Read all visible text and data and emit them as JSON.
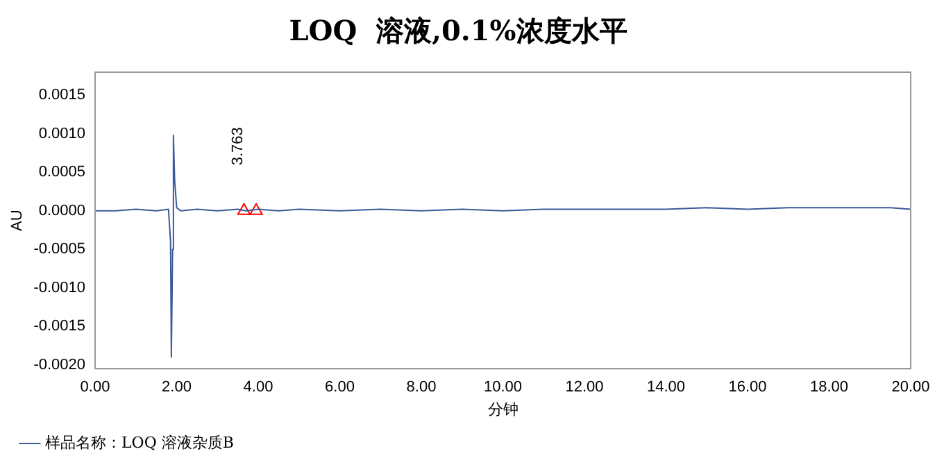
{
  "chart_data": {
    "type": "line",
    "title": "LOQ  溶液,0.1%浓度水平",
    "xlabel": "分钟",
    "ylabel": "AU",
    "xlim": [
      0,
      20
    ],
    "ylim": [
      -0.00205,
      0.0018
    ],
    "xticks": [
      {
        "value": 0,
        "label": "0.00"
      },
      {
        "value": 2,
        "label": "2.00"
      },
      {
        "value": 4,
        "label": "4.00"
      },
      {
        "value": 6,
        "label": "6.00"
      },
      {
        "value": 8,
        "label": "8.00"
      },
      {
        "value": 10,
        "label": "10.00"
      },
      {
        "value": 12,
        "label": "12.00"
      },
      {
        "value": 14,
        "label": "14.00"
      },
      {
        "value": 16,
        "label": "16.00"
      },
      {
        "value": 18,
        "label": "18.00"
      },
      {
        "value": 20,
        "label": "20.00"
      }
    ],
    "yticks": [
      {
        "value": -0.002,
        "label": "-0.0020"
      },
      {
        "value": -0.0015,
        "label": "-0.0015"
      },
      {
        "value": -0.001,
        "label": "-0.0010"
      },
      {
        "value": -0.0005,
        "label": "-0.0005"
      },
      {
        "value": 0,
        "label": "0.0000"
      },
      {
        "value": 0.0005,
        "label": "0.0005"
      },
      {
        "value": 0.001,
        "label": "0.0010"
      },
      {
        "value": 0.0015,
        "label": "0.0015"
      }
    ],
    "grid": false,
    "legend": "bottom left",
    "marker": "none",
    "line_style": "solid",
    "annotations": [
      "3.763"
    ],
    "series": [
      {
        "name": "样品名称：LOQ 溶液杂质B",
        "color": "#3b5a99",
        "x": [
          0,
          0.5,
          1,
          1.5,
          1.8,
          1.85,
          1.87,
          1.9,
          1.92,
          1.95,
          2,
          2.1,
          2.5,
          3,
          3.5,
          3.7,
          4,
          4.5,
          5,
          6,
          7,
          8,
          9,
          10,
          11,
          12,
          13,
          14,
          15,
          16,
          17,
          18,
          19,
          19.5,
          20
        ],
        "values": [
          0,
          0,
          2e-05,
          0,
          2e-05,
          -0.0004,
          -0.0019,
          -0.0005,
          0.00098,
          0.0004,
          4e-05,
          0,
          2e-05,
          0,
          2e-05,
          0,
          2e-05,
          0,
          2e-05,
          0,
          2e-05,
          0,
          2e-05,
          0,
          2e-05,
          2e-05,
          2e-05,
          2e-05,
          4e-05,
          2e-05,
          4e-05,
          4e-05,
          4e-05,
          4e-05,
          2e-05
        ]
      },
      {
        "type": "scatter",
        "marker": "triangle",
        "color": "#ff0000",
        "x": [
          3.65,
          3.95
        ],
        "values": [
          0,
          0
        ]
      }
    ]
  }
}
